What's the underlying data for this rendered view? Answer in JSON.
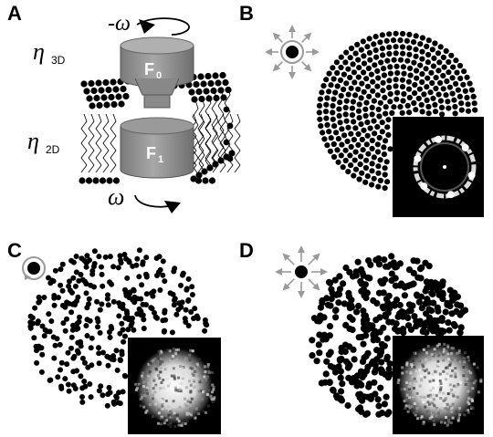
{
  "panels": {
    "a": {
      "label": "A",
      "omega_top": "-ω",
      "eta_3d": "η",
      "eta_3d_sub": "3D",
      "eta_2d": "η",
      "eta_2d_sub": "2D",
      "f0": "F",
      "f0_sub": "0",
      "f1": "F",
      "f1_sub": "1",
      "omega_bottom": "ω"
    },
    "b": {
      "label": "B"
    },
    "c": {
      "label": "C"
    },
    "d": {
      "label": "D"
    }
  },
  "colors": {
    "particle": "#000000",
    "gray_cylinder": "#8c8c8c",
    "arrow_gray": "#9a9a9a",
    "inset_bg": "#000000"
  }
}
